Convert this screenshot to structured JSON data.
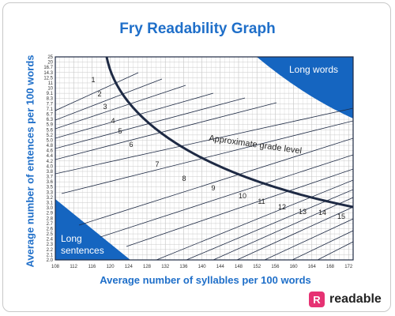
{
  "title": "Fry Readability Graph",
  "y_axis_label": "Average number of entences per 100 words",
  "x_axis_label": "Average number of syllables per 100 words",
  "region_labels": {
    "long_words": "Long words",
    "long_sentences_line1": "Long",
    "long_sentences_line2": "sentences",
    "grade_curve": "Approximate grade level"
  },
  "brand": {
    "mark": "R",
    "name": "readable"
  },
  "colors": {
    "accent": "#1f6fc9",
    "brand": "#e63273",
    "curve": "#1e2a44"
  },
  "chart_data": {
    "type": "diagram",
    "y_ticks": [
      "25",
      "20",
      "16.7",
      "14.3",
      "12.5",
      "11",
      "10",
      "9.1",
      "8.3",
      "7.7",
      "7.1",
      "6.7",
      "6.3",
      "5.9",
      "5.6",
      "5.2",
      "5.0",
      "4.8",
      "4.6",
      "4.4",
      "4.2",
      "4.0",
      "3.8",
      "3.7",
      "3.6",
      "3.5",
      "3.3",
      "3.2",
      "3.1",
      "3.0",
      "2.9",
      "2.8",
      "2.7",
      "2.6",
      "2.5",
      "2.4",
      "2.3",
      "2.2",
      "2.1",
      "2.0"
    ],
    "x_ticks": [
      "108",
      "112",
      "116",
      "120",
      "124",
      "128",
      "132",
      "136",
      "140",
      "144",
      "148",
      "152",
      "156",
      "160",
      "164",
      "168",
      "172"
    ],
    "grade_levels": [
      "1",
      "2",
      "3",
      "4",
      "5",
      "6",
      "7",
      "8",
      "9",
      "10",
      "11",
      "12",
      "13",
      "14",
      "15"
    ]
  }
}
